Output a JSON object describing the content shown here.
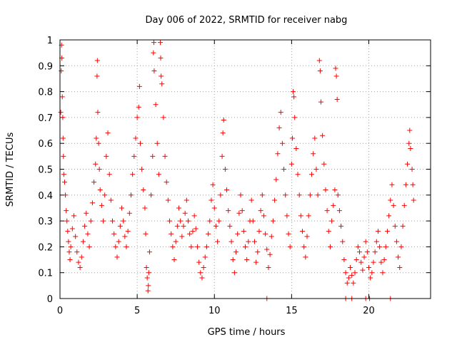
{
  "chart_data": {
    "type": "scatter",
    "title": "Day 006 of 2022, SRMTID for receiver nabg",
    "xlabel": "GPS time / hours",
    "ylabel": "SRMTID / TECUs",
    "xlim": [
      0,
      24
    ],
    "ylim": [
      0,
      1
    ],
    "xticks": [
      0,
      5,
      10,
      15,
      20
    ],
    "xtick_labels": [
      "0",
      "5",
      "10",
      "15",
      "20"
    ],
    "yticks": [
      0,
      0.1,
      0.2,
      0.3,
      0.4,
      0.5,
      0.6,
      0.7,
      0.8,
      0.9,
      1
    ],
    "ytick_labels": [
      "0",
      "0.1",
      "0.2",
      "0.3",
      "0.4",
      "0.5",
      "0.6",
      "0.7",
      "0.8",
      "0.9",
      "1"
    ],
    "grid": true,
    "marker": "+",
    "series": [
      {
        "name": "SRMTID",
        "color": "#ff0000",
        "points": [
          [
            0.05,
            0.72
          ],
          [
            0.08,
            0.88
          ],
          [
            0.1,
            0.98
          ],
          [
            0.12,
            0.93
          ],
          [
            0.15,
            0.78
          ],
          [
            0.18,
            0.7
          ],
          [
            0.2,
            0.62
          ],
          [
            0.22,
            0.55
          ],
          [
            0.25,
            0.48
          ],
          [
            0.3,
            0.45
          ],
          [
            0.35,
            0.4
          ],
          [
            0.4,
            0.34
          ],
          [
            0.45,
            0.3
          ],
          [
            0.5,
            0.26
          ],
          [
            0.55,
            0.22
          ],
          [
            0.6,
            0.18
          ],
          [
            0.65,
            0.15
          ],
          [
            0.7,
            0.2
          ],
          [
            0.8,
            0.27
          ],
          [
            0.9,
            0.32
          ],
          [
            1.0,
            0.24
          ],
          [
            1.1,
            0.18
          ],
          [
            1.2,
            0.14
          ],
          [
            1.3,
            0.12
          ],
          [
            1.4,
            0.16
          ],
          [
            1.5,
            0.22
          ],
          [
            1.6,
            0.28
          ],
          [
            1.7,
            0.33
          ],
          [
            1.8,
            0.25
          ],
          [
            1.9,
            0.2
          ],
          [
            2.0,
            0.3
          ],
          [
            2.1,
            0.37
          ],
          [
            2.2,
            0.45
          ],
          [
            2.3,
            0.52
          ],
          [
            2.35,
            0.62
          ],
          [
            2.4,
            0.86
          ],
          [
            2.42,
            0.92
          ],
          [
            2.45,
            0.72
          ],
          [
            2.5,
            0.6
          ],
          [
            2.55,
            0.5
          ],
          [
            2.6,
            0.42
          ],
          [
            2.7,
            0.36
          ],
          [
            2.8,
            0.3
          ],
          [
            2.9,
            0.4
          ],
          [
            3.0,
            0.55
          ],
          [
            3.1,
            0.64
          ],
          [
            3.2,
            0.48
          ],
          [
            3.3,
            0.38
          ],
          [
            3.4,
            0.3
          ],
          [
            3.5,
            0.25
          ],
          [
            3.6,
            0.2
          ],
          [
            3.7,
            0.16
          ],
          [
            3.8,
            0.22
          ],
          [
            3.9,
            0.28
          ],
          [
            4.0,
            0.35
          ],
          [
            4.1,
            0.3
          ],
          [
            4.2,
            0.24
          ],
          [
            4.3,
            0.2
          ],
          [
            4.4,
            0.26
          ],
          [
            4.5,
            0.33
          ],
          [
            4.6,
            0.4
          ],
          [
            4.7,
            0.48
          ],
          [
            4.8,
            0.55
          ],
          [
            4.9,
            0.62
          ],
          [
            5.0,
            0.7
          ],
          [
            5.1,
            0.74
          ],
          [
            5.15,
            0.82
          ],
          [
            5.2,
            0.6
          ],
          [
            5.3,
            0.5
          ],
          [
            5.4,
            0.42
          ],
          [
            5.5,
            0.35
          ],
          [
            5.55,
            0.25
          ],
          [
            5.6,
            0.12
          ],
          [
            5.65,
            0.08
          ],
          [
            5.7,
            0.03
          ],
          [
            5.72,
            0.05
          ],
          [
            5.75,
            0.1
          ],
          [
            5.8,
            0.18
          ],
          [
            5.9,
            0.4
          ],
          [
            6.0,
            0.55
          ],
          [
            6.05,
            0.95
          ],
          [
            6.08,
            0.99
          ],
          [
            6.1,
            0.88
          ],
          [
            6.2,
            0.75
          ],
          [
            6.3,
            0.6
          ],
          [
            6.4,
            0.48
          ],
          [
            6.5,
            0.99
          ],
          [
            6.52,
            0.93
          ],
          [
            6.55,
            0.86
          ],
          [
            6.6,
            0.83
          ],
          [
            6.7,
            0.7
          ],
          [
            6.8,
            0.55
          ],
          [
            6.9,
            0.45
          ],
          [
            7.0,
            0.38
          ],
          [
            7.1,
            0.3
          ],
          [
            7.2,
            0.25
          ],
          [
            7.3,
            0.2
          ],
          [
            7.4,
            0.15
          ],
          [
            7.5,
            0.22
          ],
          [
            7.6,
            0.28
          ],
          [
            7.7,
            0.35
          ],
          [
            7.8,
            0.3
          ],
          [
            7.9,
            0.24
          ],
          [
            8.0,
            0.28
          ],
          [
            8.1,
            0.33
          ],
          [
            8.2,
            0.38
          ],
          [
            8.3,
            0.3
          ],
          [
            8.4,
            0.25
          ],
          [
            8.5,
            0.2
          ],
          [
            8.6,
            0.26
          ],
          [
            8.7,
            0.32
          ],
          [
            8.8,
            0.27
          ],
          [
            8.9,
            0.2
          ],
          [
            9.0,
            0.14
          ],
          [
            9.1,
            0.1
          ],
          [
            9.2,
            0.08
          ],
          [
            9.3,
            0.12
          ],
          [
            9.4,
            0.16
          ],
          [
            9.5,
            0.2
          ],
          [
            9.6,
            0.25
          ],
          [
            9.7,
            0.3
          ],
          [
            9.8,
            0.38
          ],
          [
            9.9,
            0.44
          ],
          [
            10.0,
            0.35
          ],
          [
            10.1,
            0.28
          ],
          [
            10.2,
            0.22
          ],
          [
            10.3,
            0.3
          ],
          [
            10.4,
            0.4
          ],
          [
            10.5,
            0.55
          ],
          [
            10.55,
            0.64
          ],
          [
            10.6,
            0.69
          ],
          [
            10.7,
            0.5
          ],
          [
            10.8,
            0.42
          ],
          [
            10.9,
            0.34
          ],
          [
            11.0,
            0.28
          ],
          [
            11.1,
            0.22
          ],
          [
            11.2,
            0.15
          ],
          [
            11.3,
            0.1
          ],
          [
            11.4,
            0.18
          ],
          [
            11.5,
            0.25
          ],
          [
            11.6,
            0.33
          ],
          [
            11.7,
            0.4
          ],
          [
            11.8,
            0.34
          ],
          [
            11.9,
            0.26
          ],
          [
            12.0,
            0.2
          ],
          [
            12.1,
            0.15
          ],
          [
            12.2,
            0.22
          ],
          [
            12.3,
            0.3
          ],
          [
            12.4,
            0.38
          ],
          [
            12.5,
            0.3
          ],
          [
            12.6,
            0.22
          ],
          [
            12.7,
            0.14
          ],
          [
            12.8,
            0.18
          ],
          [
            12.9,
            0.26
          ],
          [
            13.0,
            0.34
          ],
          [
            13.1,
            0.4
          ],
          [
            13.2,
            0.32
          ],
          [
            13.3,
            0.25
          ],
          [
            13.4,
            0.19
          ],
          [
            13.5,
            0.12
          ],
          [
            13.6,
            0.17
          ],
          [
            13.7,
            0.24
          ],
          [
            13.8,
            0.3
          ],
          [
            13.9,
            0.38
          ],
          [
            14.0,
            0.46
          ],
          [
            14.1,
            0.56
          ],
          [
            14.2,
            0.66
          ],
          [
            14.3,
            0.72
          ],
          [
            14.4,
            0.6
          ],
          [
            14.5,
            0.5
          ],
          [
            14.6,
            0.4
          ],
          [
            14.7,
            0.32
          ],
          [
            14.8,
            0.25
          ],
          [
            14.9,
            0.2
          ],
          [
            15.0,
            0.52
          ],
          [
            15.05,
            0.62
          ],
          [
            15.1,
            0.8
          ],
          [
            15.15,
            0.78
          ],
          [
            15.2,
            0.7
          ],
          [
            15.3,
            0.58
          ],
          [
            15.4,
            0.48
          ],
          [
            15.5,
            0.4
          ],
          [
            15.6,
            0.32
          ],
          [
            15.7,
            0.26
          ],
          [
            15.8,
            0.2
          ],
          [
            15.9,
            0.16
          ],
          [
            16.0,
            0.24
          ],
          [
            16.1,
            0.32
          ],
          [
            16.2,
            0.4
          ],
          [
            16.3,
            0.48
          ],
          [
            16.4,
            0.56
          ],
          [
            16.5,
            0.62
          ],
          [
            16.6,
            0.5
          ],
          [
            16.7,
            0.4
          ],
          [
            16.8,
            0.92
          ],
          [
            16.85,
            0.88
          ],
          [
            16.9,
            0.76
          ],
          [
            17.0,
            0.63
          ],
          [
            17.1,
            0.52
          ],
          [
            17.2,
            0.42
          ],
          [
            17.3,
            0.34
          ],
          [
            17.4,
            0.26
          ],
          [
            17.5,
            0.2
          ],
          [
            17.6,
            0.3
          ],
          [
            17.7,
            0.36
          ],
          [
            17.8,
            0.42
          ],
          [
            17.85,
            0.89
          ],
          [
            17.9,
            0.86
          ],
          [
            17.95,
            0.77
          ],
          [
            18.0,
            0.4
          ],
          [
            18.1,
            0.34
          ],
          [
            18.2,
            0.28
          ],
          [
            18.3,
            0.22
          ],
          [
            18.4,
            0.15
          ],
          [
            18.5,
            0.1
          ],
          [
            18.6,
            0.06
          ],
          [
            18.7,
            0.08
          ],
          [
            18.8,
            0.12
          ],
          [
            18.9,
            0.09
          ],
          [
            19.0,
            0.06
          ],
          [
            19.1,
            0.1
          ],
          [
            19.2,
            0.15
          ],
          [
            19.3,
            0.2
          ],
          [
            19.4,
            0.18
          ],
          [
            19.5,
            0.14
          ],
          [
            19.6,
            0.11
          ],
          [
            19.7,
            0.16
          ],
          [
            19.8,
            0.22
          ],
          [
            19.9,
            0.18
          ],
          [
            20.0,
            0.12
          ],
          [
            20.1,
            0.08
          ],
          [
            20.2,
            0.1
          ],
          [
            20.3,
            0.14
          ],
          [
            20.4,
            0.18
          ],
          [
            20.5,
            0.22
          ],
          [
            20.6,
            0.26
          ],
          [
            20.7,
            0.2
          ],
          [
            20.8,
            0.14
          ],
          [
            20.9,
            0.1
          ],
          [
            21.0,
            0.15
          ],
          [
            21.1,
            0.2
          ],
          [
            21.2,
            0.26
          ],
          [
            21.3,
            0.32
          ],
          [
            21.4,
            0.38
          ],
          [
            21.5,
            0.44
          ],
          [
            21.6,
            0.36
          ],
          [
            21.7,
            0.28
          ],
          [
            21.8,
            0.22
          ],
          [
            21.9,
            0.16
          ],
          [
            22.0,
            0.12
          ],
          [
            22.1,
            0.2
          ],
          [
            22.2,
            0.28
          ],
          [
            22.3,
            0.36
          ],
          [
            22.4,
            0.44
          ],
          [
            22.5,
            0.52
          ],
          [
            22.6,
            0.6
          ],
          [
            22.65,
            0.65
          ],
          [
            22.7,
            0.58
          ],
          [
            22.8,
            0.5
          ],
          [
            22.85,
            0.44
          ],
          [
            22.9,
            0.38
          ],
          [
            13.4,
            0.0
          ],
          [
            18.5,
            0.0
          ],
          [
            18.9,
            0.0
          ],
          [
            19.8,
            0.0
          ],
          [
            20.05,
            0.0
          ],
          [
            21.4,
            0.0
          ]
        ]
      }
    ]
  }
}
